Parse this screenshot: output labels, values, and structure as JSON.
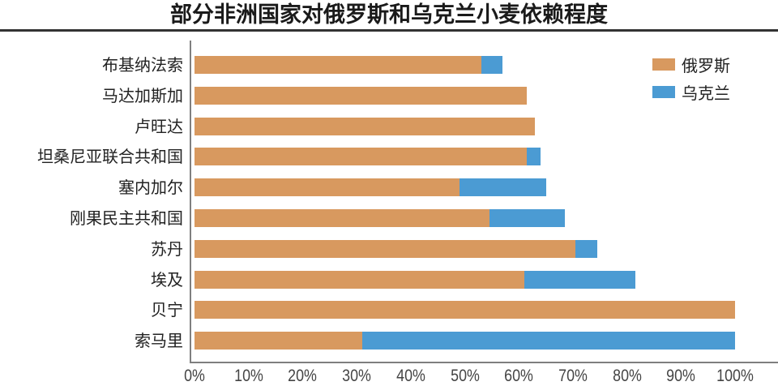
{
  "chart_data": {
    "type": "bar",
    "orientation": "horizontal",
    "stacked": true,
    "title": "部分非洲国家对俄罗斯和乌克兰小麦依赖程度",
    "xlabel": "",
    "ylabel": "",
    "xlim": [
      0,
      100
    ],
    "x_tick_labels": [
      "0%",
      "10%",
      "20%",
      "30%",
      "40%",
      "50%",
      "60%",
      "70%",
      "80%",
      "90%",
      "100%"
    ],
    "grid": false,
    "legend_position": "top-right",
    "categories": [
      "布基纳法索",
      "马达加斯加",
      "卢旺达",
      "坦桑尼亚联合共和国",
      "塞内加尔",
      "刚果民主共和国",
      "苏丹",
      "埃及",
      "贝宁",
      "索马里"
    ],
    "series": [
      {
        "name": "俄罗斯",
        "color": "#d8995f",
        "values": [
          53,
          61.5,
          63,
          61.5,
          49,
          54.5,
          70.5,
          61,
          100,
          31
        ]
      },
      {
        "name": "乌克兰",
        "color": "#4b9bd3",
        "values": [
          4,
          0,
          0,
          2.5,
          16,
          14,
          4,
          20.5,
          0,
          69
        ]
      }
    ]
  },
  "legend": [
    {
      "label": "俄罗斯",
      "color": "#d8995f"
    },
    {
      "label": "乌克兰",
      "color": "#4b9bd3"
    }
  ]
}
